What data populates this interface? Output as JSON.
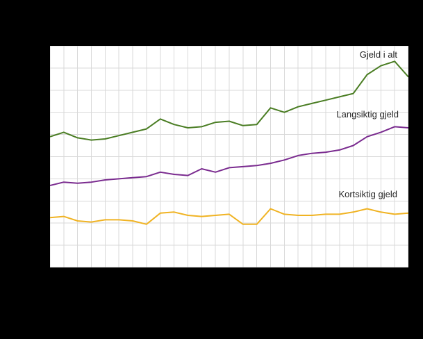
{
  "chart": {
    "labels": {
      "total": "Gjeld i alt",
      "long_term": "Langsiktig gjeld",
      "short_term": "Kortsiktig gjeld"
    },
    "colors": {
      "page_background": "#000000",
      "panel_background": "#ffffff",
      "grid": "#d9d9d9",
      "label_text": "#262626"
    }
  },
  "chart_data": {
    "type": "line",
    "title": "",
    "xlabel": "",
    "ylabel": "",
    "ylim": [
      0,
      100
    ],
    "grid": true,
    "grid_color": "#d9d9d9",
    "legend_position": "inline-annotations",
    "value_scale": "estimated percent of plot height; axis tick labels not legible in screenshot",
    "annotations": [
      "Gjeld i alt",
      "Langsiktig gjeld",
      "Kortsiktig gjeld"
    ],
    "series": [
      {
        "name": "Gjeld i alt",
        "color": "#4a7d23",
        "values": [
          59,
          61,
          58.5,
          57.5,
          58,
          59.5,
          61,
          62.5,
          67,
          64.5,
          63,
          63.5,
          65.5,
          66,
          64,
          64.5,
          72,
          70,
          72.5,
          74,
          75.5,
          77,
          78.5,
          87,
          91,
          93,
          86
        ]
      },
      {
        "name": "Langsiktig gjeld",
        "color": "#7a2b8f",
        "values": [
          37,
          38.5,
          38,
          38.5,
          39.5,
          40,
          40.5,
          41,
          43,
          42,
          41.5,
          44.5,
          43,
          45,
          45.5,
          46,
          47,
          48.5,
          50.5,
          51.5,
          52,
          53,
          55,
          59,
          61,
          63.5,
          63
        ]
      },
      {
        "name": "Kortsiktig gjeld",
        "color": "#f0b323",
        "values": [
          22.5,
          23,
          21,
          20.5,
          21.5,
          21.5,
          21,
          19.5,
          24.5,
          25,
          23.5,
          23,
          23.5,
          24,
          19.5,
          19.5,
          26.5,
          24,
          23.5,
          23.5,
          24,
          24,
          25,
          26.5,
          25,
          24,
          24.5
        ]
      }
    ]
  }
}
